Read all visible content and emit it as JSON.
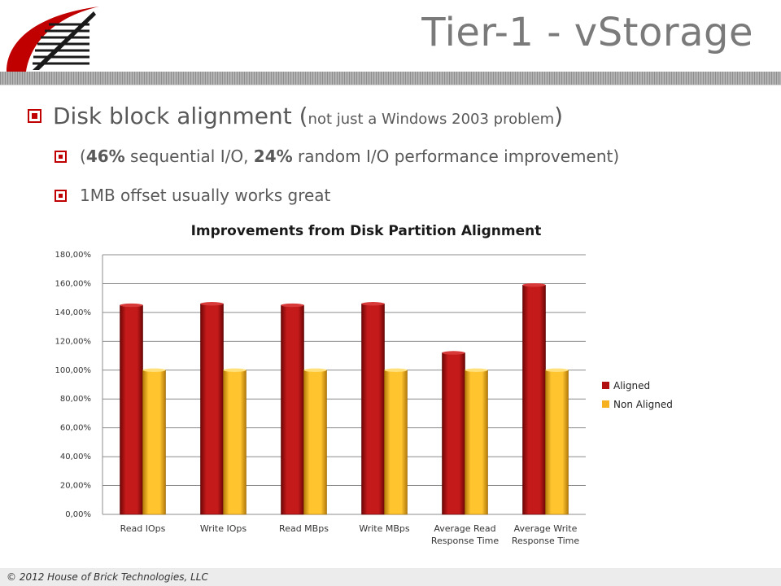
{
  "slide": {
    "title": "Tier-1 - vStorage",
    "bullets": [
      {
        "pre": "Disk block alignment (",
        "small": "not just a Windows 2003 problem",
        "post": ")"
      },
      {
        "p1": "(",
        "b1": "46%",
        "p2": " sequential I/O, ",
        "b2": "24%",
        "p3": " random I/O performance improvement)"
      },
      {
        "text": "1MB offset usually works great"
      }
    ],
    "footer": "© 2012 House of Brick Technologies, LLC"
  },
  "chart_data": {
    "type": "bar",
    "title": "Improvements from Disk Partition Alignment",
    "categories": [
      [
        "Read IOps"
      ],
      [
        "Write IOps"
      ],
      [
        "Read MBps"
      ],
      [
        "Write MBps"
      ],
      [
        "Average Read",
        "Response Time"
      ],
      [
        "Average Write",
        "Response Time"
      ]
    ],
    "series": [
      {
        "name": "Aligned",
        "color": "#b01010",
        "values": [
          145,
          146,
          145,
          146,
          112,
          159
        ]
      },
      {
        "name": "Non Aligned",
        "color": "#f5b21e",
        "values": [
          100,
          100,
          100,
          100,
          100,
          100
        ]
      }
    ],
    "y_ticks": [
      "0,00%",
      "20,00%",
      "40,00%",
      "60,00%",
      "80,00%",
      "100,00%",
      "120,00%",
      "140,00%",
      "160,00%",
      "180,00%"
    ],
    "ylim": [
      0,
      180
    ],
    "grid": true,
    "legend_position": "right"
  }
}
